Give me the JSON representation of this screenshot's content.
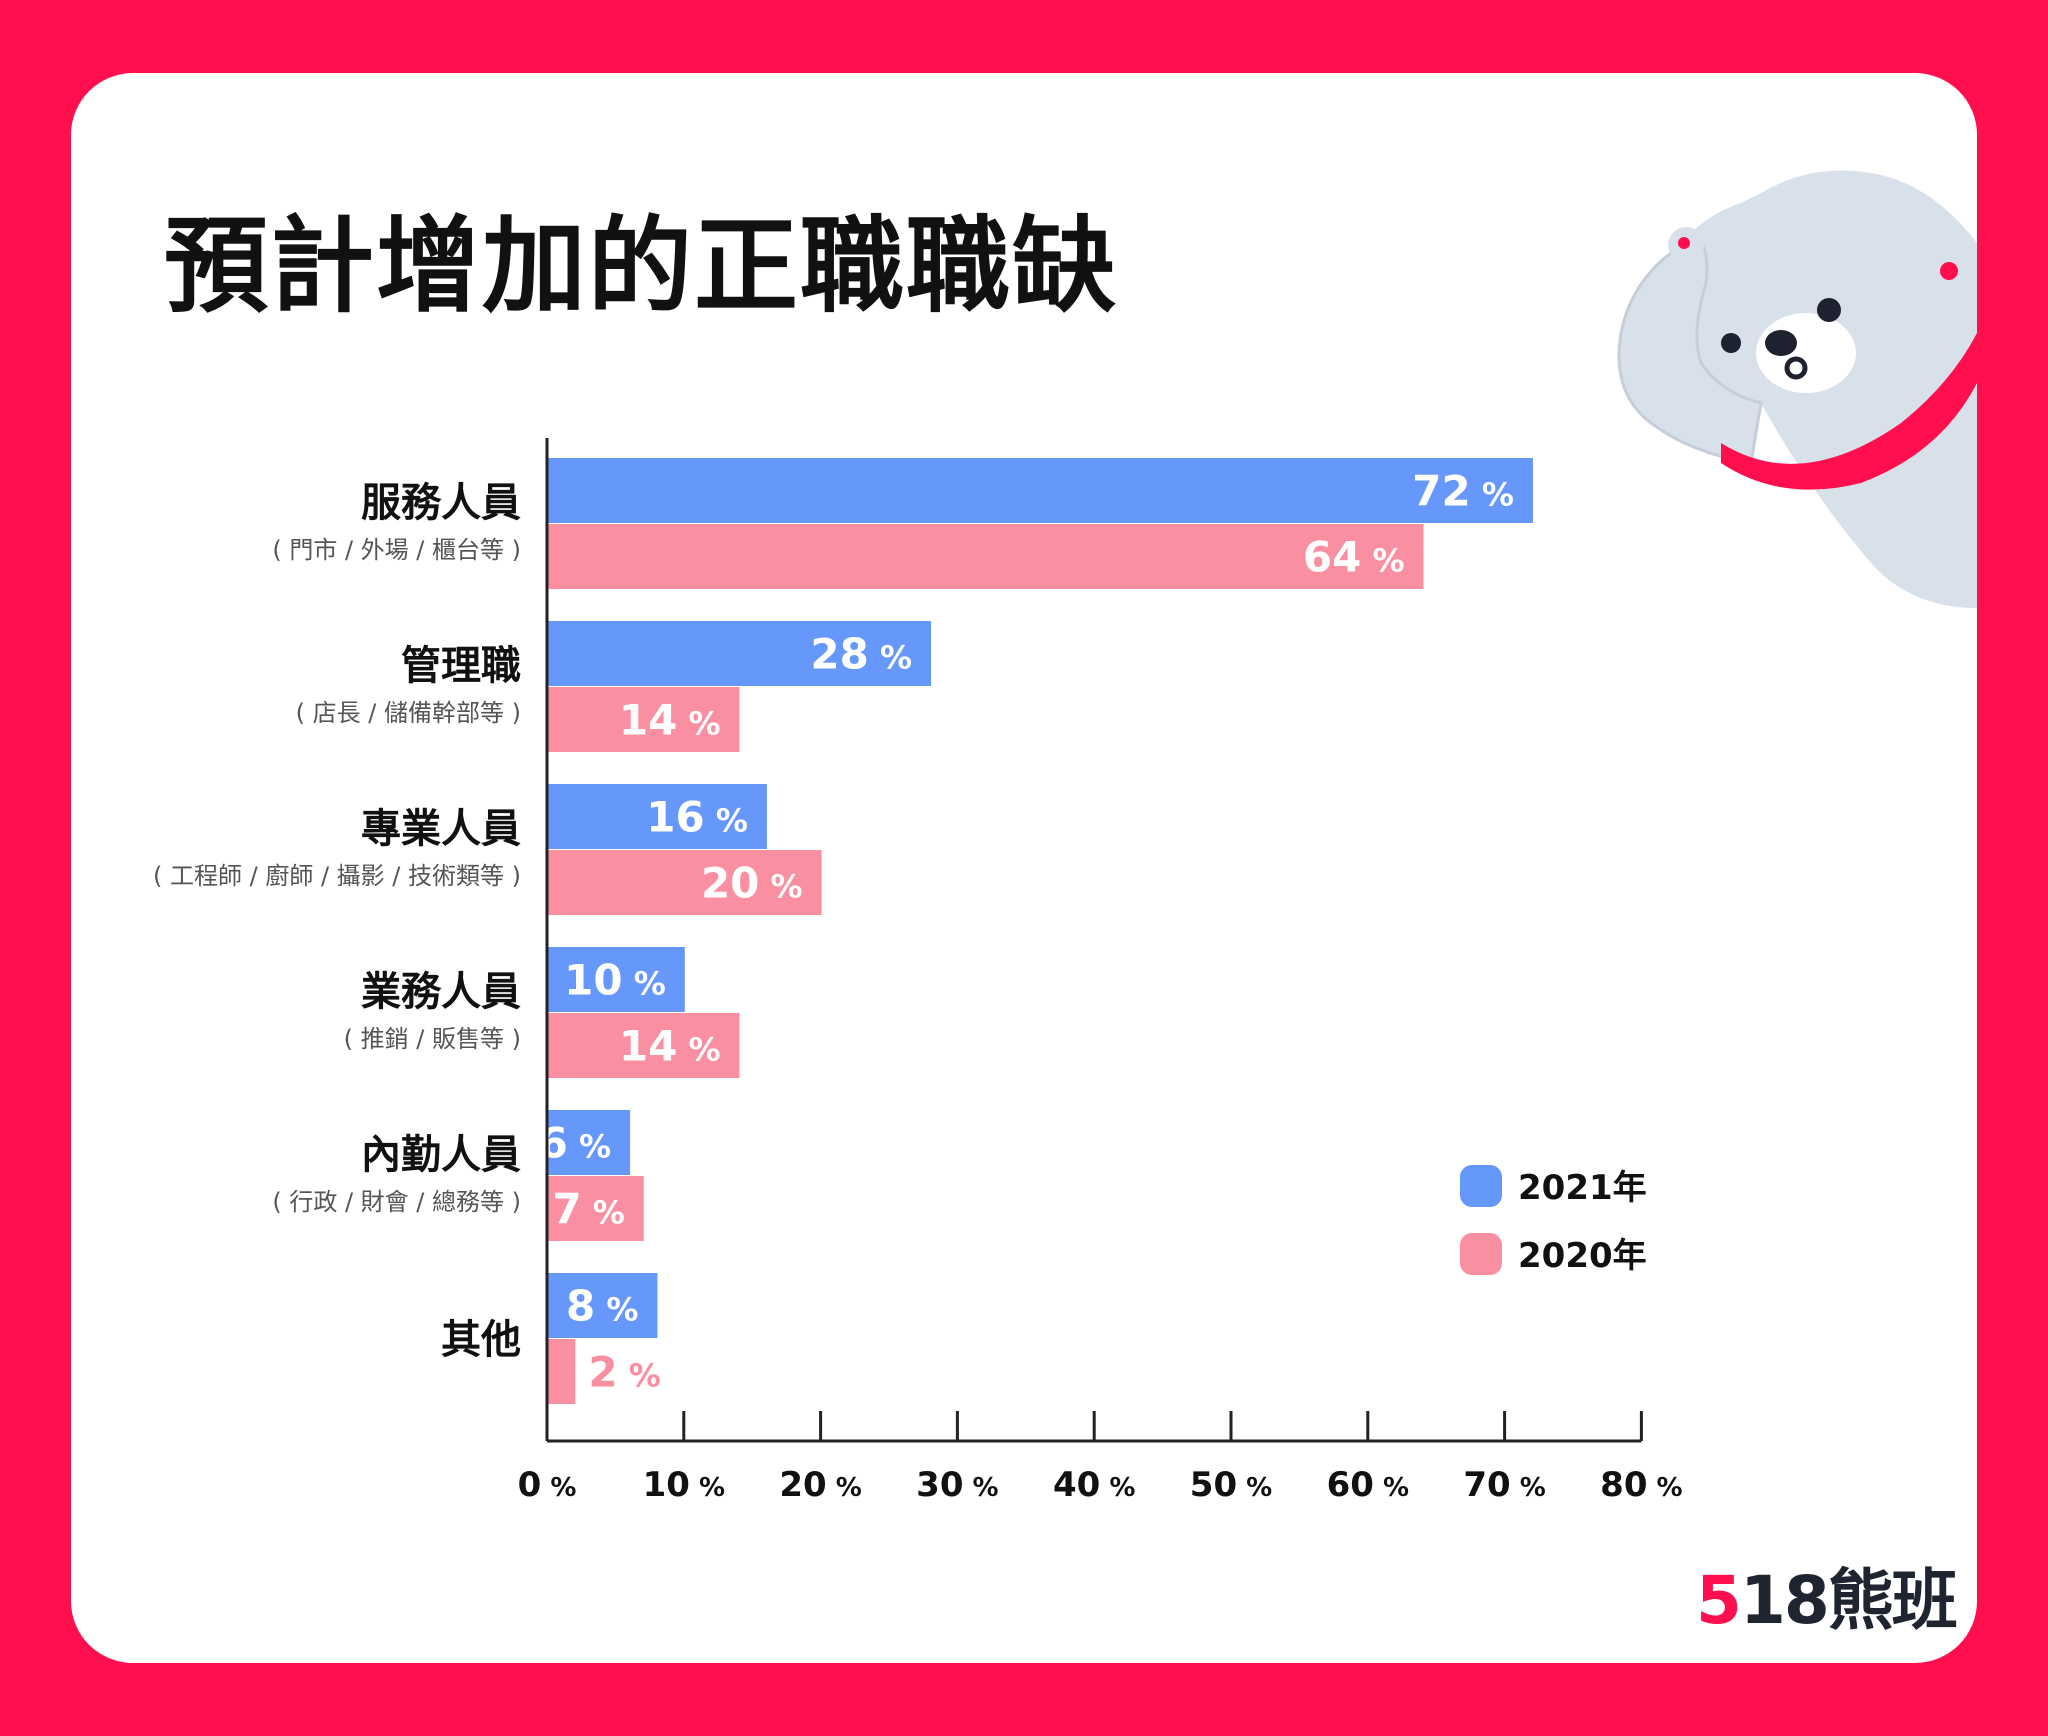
{
  "title": "預計增加的正職職缺",
  "brand": {
    "accent": "5",
    "rest": "18熊班"
  },
  "colors": {
    "series_2021": "#6697fb",
    "series_2020": "#fb8fa2",
    "background": "#ff0f4d",
    "axis": "#222222"
  },
  "bear_icon": "polar-bear-mascot",
  "chart_data": {
    "type": "bar",
    "orientation": "horizontal",
    "title": "預計增加的正職職缺",
    "categories": [
      "服務人員",
      "管理職",
      "專業人員",
      "業務人員",
      "內勤人員",
      "其他"
    ],
    "category_notes": [
      "( 門市 / 外場 / 櫃台等 )",
      "( 店長 / 儲備幹部等 )",
      "( 工程師 / 廚師 / 攝影 / 技術類等 )",
      "( 推銷 / 販售等 )",
      "( 行政 / 財會 / 總務等 )",
      ""
    ],
    "series": [
      {
        "name": "2021年",
        "values": [
          72,
          28,
          16,
          10,
          6,
          8
        ]
      },
      {
        "name": "2020年",
        "values": [
          64,
          14,
          20,
          14,
          7,
          2
        ]
      }
    ],
    "value_unit": "%",
    "xlim": [
      0,
      80
    ],
    "xticks": [
      0,
      10,
      20,
      30,
      40,
      50,
      60,
      70,
      80
    ],
    "grid": false,
    "legend_position": "right"
  }
}
